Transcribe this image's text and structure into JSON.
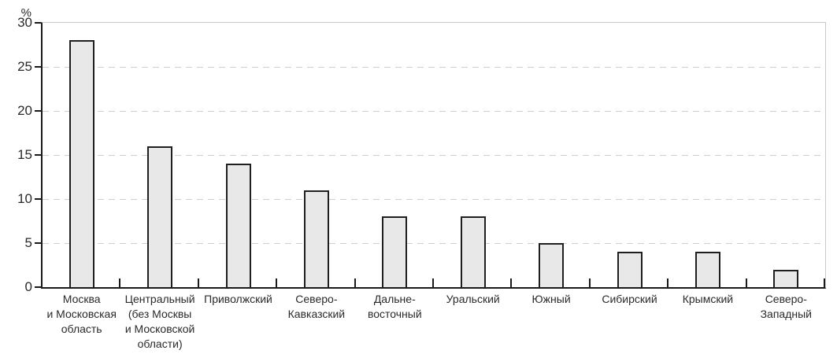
{
  "chart_data": {
    "type": "bar",
    "title": "",
    "xlabel": "",
    "ylabel": "%",
    "ylim": [
      0,
      30
    ],
    "grid": "horizontal-dashed",
    "legend": "none",
    "ytick_values": [
      30,
      25,
      20,
      15,
      10,
      5,
      0
    ],
    "ytick_labels": [
      "30",
      "25",
      "20",
      "15",
      "10",
      "5",
      "0"
    ],
    "categories": [
      "Москва\nи Московская\nобласть",
      "Центральный\n(без Москвы\nи Московской\nобласти)",
      "Приволжский",
      "Северо-\nКавказский",
      "Дальне-\nвосточный",
      "Уральский",
      "Южный",
      "Сибирский",
      "Крымский",
      "Северо-\nЗападный"
    ],
    "values": [
      28,
      16,
      14,
      11,
      8,
      8,
      5,
      4,
      4,
      2
    ],
    "colors": {
      "bar_fill": "#e8e8e8",
      "bar_border": "#1f1f1f",
      "axis": "#1a1a1a",
      "grid": "#cecece",
      "frame": "#c9c9c9",
      "text": "#2a2a2a",
      "background": "#ffffff"
    }
  }
}
